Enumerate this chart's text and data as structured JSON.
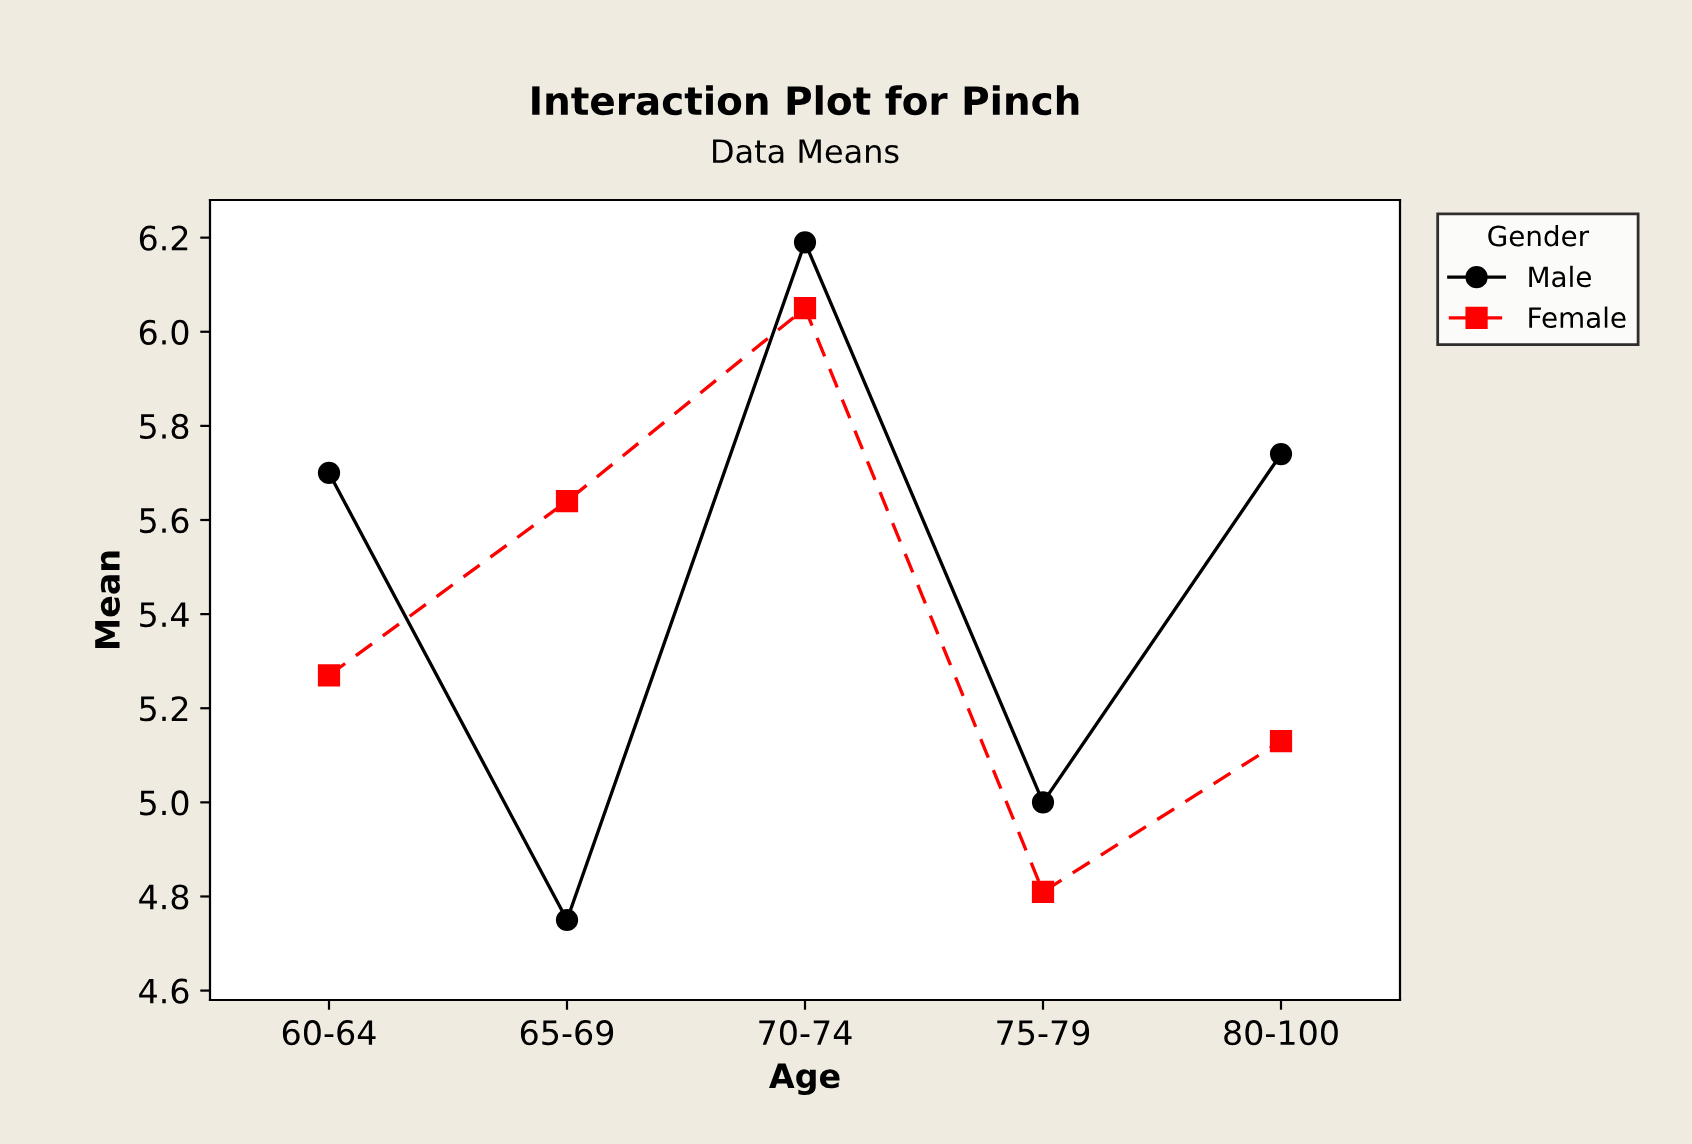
{
  "chart_data": {
    "type": "line",
    "title": "Interaction Plot for Pinch",
    "subtitle": "Data Means",
    "xlabel": "Age",
    "ylabel": "Mean",
    "legend_title": "Gender",
    "categories": [
      "60-64",
      "65-69",
      "70-74",
      "75-79",
      "80-100"
    ],
    "series": [
      {
        "name": "Male",
        "color": "#000000",
        "values": [
          5.7,
          4.75,
          6.19,
          5.0,
          5.74
        ],
        "marker": "circle",
        "line_style": "solid"
      },
      {
        "name": "Female",
        "color": "#ff0000",
        "values": [
          5.27,
          5.64,
          6.05,
          4.81,
          5.13
        ],
        "marker": "square",
        "line_style": "dashed"
      }
    ],
    "ylim": [
      4.58,
      6.28
    ],
    "yticks": [
      {
        "value": 4.6,
        "label": "4.6"
      },
      {
        "value": 4.8,
        "label": "4.8"
      },
      {
        "value": 5.0,
        "label": "5.0"
      },
      {
        "value": 5.2,
        "label": "5.2"
      },
      {
        "value": 5.4,
        "label": "5.4"
      },
      {
        "value": 5.6,
        "label": "5.6"
      },
      {
        "value": 5.8,
        "label": "5.8"
      },
      {
        "value": 6.0,
        "label": "6.0"
      },
      {
        "value": 6.2,
        "label": "6.2"
      }
    ],
    "grid": false,
    "legend": "right"
  }
}
